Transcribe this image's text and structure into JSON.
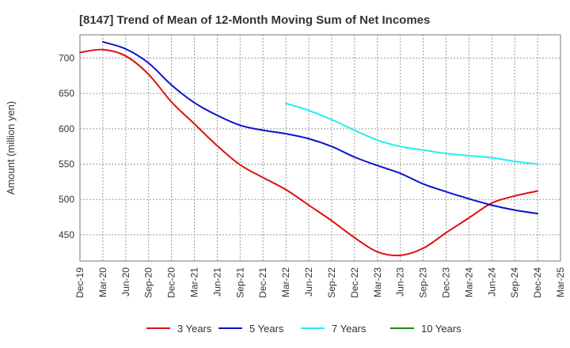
{
  "chart_data": {
    "type": "line",
    "title": "[8147]  Trend of Mean of 12-Month Moving Sum of Net Incomes",
    "xlabel": "",
    "ylabel": "Amount (million yen)",
    "ylim": [
      413,
      733
    ],
    "yticks": [
      450,
      500,
      550,
      600,
      650,
      700
    ],
    "grid": true,
    "legend_position": "bottom",
    "categories": [
      "Dec-19",
      "Mar-20",
      "Jun-20",
      "Sep-20",
      "Dec-20",
      "Mar-21",
      "Jun-21",
      "Sep-21",
      "Dec-21",
      "Mar-22",
      "Jun-22",
      "Sep-22",
      "Dec-22",
      "Mar-23",
      "Jun-23",
      "Sep-23",
      "Dec-23",
      "Mar-24",
      "Jun-24",
      "Sep-24",
      "Dec-24",
      "Mar-25"
    ],
    "series": [
      {
        "name": "3 Years",
        "color": "#dd1111",
        "values": [
          708,
          712,
          703,
          677,
          638,
          607,
          576,
          549,
          531,
          514,
          492,
          470,
          446,
          426,
          421,
          431,
          453,
          474,
          495,
          505,
          512,
          null
        ]
      },
      {
        "name": "5 Years",
        "color": "#0a14c8",
        "values": [
          null,
          723,
          713,
          693,
          662,
          637,
          619,
          605,
          598,
          593,
          586,
          575,
          560,
          548,
          537,
          522,
          511,
          501,
          492,
          485,
          480,
          null
        ]
      },
      {
        "name": "7 Years",
        "color": "#22eeee",
        "values": [
          null,
          null,
          null,
          null,
          null,
          null,
          null,
          null,
          null,
          636,
          626,
          613,
          598,
          584,
          575,
          570,
          565,
          562,
          559,
          554,
          550,
          null
        ]
      },
      {
        "name": "10 Years",
        "color": "#1a8a1a",
        "values": [
          null,
          null,
          null,
          null,
          null,
          null,
          null,
          null,
          null,
          null,
          null,
          null,
          null,
          null,
          null,
          null,
          null,
          null,
          null,
          null,
          null,
          null
        ]
      }
    ]
  }
}
